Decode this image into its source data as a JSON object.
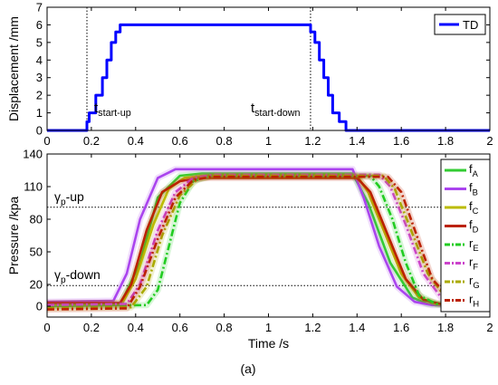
{
  "chart_data": [
    {
      "type": "line",
      "ylabel": "Displacement /mm",
      "xlim": [
        0,
        2
      ],
      "ylim": [
        0,
        7
      ],
      "xticks": [
        "0",
        "0.2",
        "0.4",
        "0.6",
        "0.8",
        "1",
        "1.2",
        "1.4",
        "1.6",
        "1.8",
        "2"
      ],
      "yticks": [
        "0",
        "1",
        "2",
        "3",
        "4",
        "5",
        "6",
        "7"
      ],
      "legend": {
        "position": "top-right",
        "entries": [
          "TD"
        ]
      },
      "annotations": [
        {
          "text": "t",
          "sub": "start-up",
          "x": 0.18
        },
        {
          "text": "t",
          "sub": "start-down",
          "x": 1.19
        }
      ],
      "vlines": [
        0.18,
        1.19
      ],
      "series": [
        {
          "name": "TD",
          "color": "#0000ff",
          "x": [
            0,
            0.18,
            0.18,
            0.19,
            0.19,
            0.22,
            0.22,
            0.25,
            0.25,
            0.27,
            0.27,
            0.29,
            0.29,
            0.31,
            0.31,
            0.33,
            0.33,
            0.35,
            0.35,
            1.19,
            1.19,
            1.21,
            1.21,
            1.23,
            1.23,
            1.25,
            1.25,
            1.27,
            1.27,
            1.29,
            1.29,
            1.32,
            1.32,
            1.35,
            1.35,
            2.0
          ],
          "values": [
            0,
            0,
            0.5,
            0.5,
            1,
            1,
            2,
            2,
            3,
            3,
            4,
            4,
            5,
            5,
            5.6,
            5.6,
            6,
            6,
            6,
            6,
            5.6,
            5.6,
            5,
            5,
            4,
            4,
            3,
            3,
            2,
            2,
            1,
            1,
            0.5,
            0.5,
            0,
            0
          ]
        }
      ]
    },
    {
      "type": "line",
      "xlabel": "Time /s",
      "ylabel": "Pressure /kpa",
      "xlim": [
        0,
        2
      ],
      "ylim": [
        -10,
        140
      ],
      "xticks": [
        "0",
        "0.2",
        "0.4",
        "0.6",
        "0.8",
        "1",
        "1.2",
        "1.4",
        "1.6",
        "1.8",
        "2"
      ],
      "yticks": [
        "0",
        "20",
        "50",
        "80",
        "110",
        "140"
      ],
      "hlines": [
        {
          "y": 91,
          "label": "γ",
          "sub": "p",
          "suffix": "-up"
        },
        {
          "y": 19,
          "label": "γ",
          "sub": "p",
          "suffix": "-down"
        }
      ],
      "legend": {
        "position": "right",
        "entries": [
          {
            "main": "f",
            "sub": "A"
          },
          {
            "main": "f",
            "sub": "B"
          },
          {
            "main": "f",
            "sub": "C"
          },
          {
            "main": "f",
            "sub": "D"
          },
          {
            "main": "r",
            "sub": "E"
          },
          {
            "main": "r",
            "sub": "F"
          },
          {
            "main": "r",
            "sub": "G"
          },
          {
            "main": "r",
            "sub": "H"
          }
        ]
      },
      "series": [
        {
          "name": "fA",
          "color": "#33cc33",
          "dash": "solid",
          "x": [
            0,
            0.33,
            0.42,
            0.5,
            0.6,
            0.7,
            1.38,
            1.45,
            1.55,
            1.65,
            1.72,
            1.8,
            2.0
          ],
          "values": [
            0,
            1,
            40,
            100,
            120,
            122,
            122,
            95,
            40,
            8,
            2,
            1,
            1
          ]
        },
        {
          "name": "fB",
          "color": "#aa44ee",
          "dash": "solid",
          "x": [
            0,
            0.3,
            0.36,
            0.42,
            0.5,
            0.58,
            0.65,
            1.38,
            1.43,
            1.5,
            1.58,
            1.66,
            1.74,
            2.0
          ],
          "values": [
            4,
            5,
            30,
            80,
            118,
            126,
            126,
            126,
            100,
            55,
            18,
            4,
            1,
            1
          ]
        },
        {
          "name": "fC",
          "color": "#bbbb00",
          "dash": "solid",
          "x": [
            0,
            0.34,
            0.4,
            0.48,
            0.55,
            0.62,
            0.7,
            1.4,
            1.45,
            1.52,
            1.6,
            1.68,
            1.76,
            2.0
          ],
          "values": [
            2,
            3,
            25,
            75,
            108,
            118,
            120,
            120,
            105,
            70,
            30,
            8,
            2,
            2
          ]
        },
        {
          "name": "fD",
          "color": "#bb2200",
          "dash": "solid",
          "x": [
            0,
            0.33,
            0.38,
            0.45,
            0.52,
            0.6,
            0.7,
            1.4,
            1.46,
            1.54,
            1.62,
            1.7,
            1.78,
            2.0
          ],
          "values": [
            3,
            3,
            20,
            70,
            105,
            115,
            118,
            118,
            105,
            65,
            25,
            6,
            2,
            2
          ]
        },
        {
          "name": "rE",
          "color": "#22cc22",
          "dash": "8,3,2,3",
          "x": [
            0,
            0.45,
            0.5,
            0.55,
            0.6,
            0.66,
            0.74,
            1.46,
            1.5,
            1.56,
            1.62,
            1.68,
            1.76,
            2.0
          ],
          "values": [
            0,
            1,
            15,
            55,
            95,
            115,
            120,
            120,
            110,
            80,
            40,
            10,
            2,
            2
          ]
        },
        {
          "name": "rF",
          "color": "#cc44cc",
          "dash": "8,3,2,3",
          "x": [
            0,
            0.36,
            0.42,
            0.5,
            0.58,
            0.66,
            0.75,
            1.5,
            1.55,
            1.62,
            1.7,
            1.78,
            1.86,
            2.0
          ],
          "values": [
            1,
            2,
            20,
            70,
            105,
            118,
            121,
            121,
            110,
            75,
            30,
            8,
            2,
            2
          ]
        },
        {
          "name": "rG",
          "color": "#aaaa00",
          "dash": "8,3,2,3",
          "x": [
            0,
            0.38,
            0.45,
            0.52,
            0.6,
            0.68,
            0.76,
            1.52,
            1.57,
            1.64,
            1.72,
            1.8,
            1.88,
            2.0
          ],
          "values": [
            -2,
            -1,
            18,
            65,
            102,
            117,
            120,
            120,
            108,
            72,
            30,
            8,
            3,
            3
          ]
        },
        {
          "name": "rH",
          "color": "#bb2200",
          "dash": "8,3,2,3",
          "x": [
            0,
            0.36,
            0.42,
            0.5,
            0.58,
            0.66,
            0.74,
            1.54,
            1.6,
            1.67,
            1.74,
            1.82,
            1.9,
            2.0
          ],
          "values": [
            -3,
            -2,
            18,
            62,
            100,
            116,
            119,
            119,
            105,
            65,
            25,
            7,
            2,
            2
          ]
        }
      ]
    }
  ],
  "caption": "(a)"
}
